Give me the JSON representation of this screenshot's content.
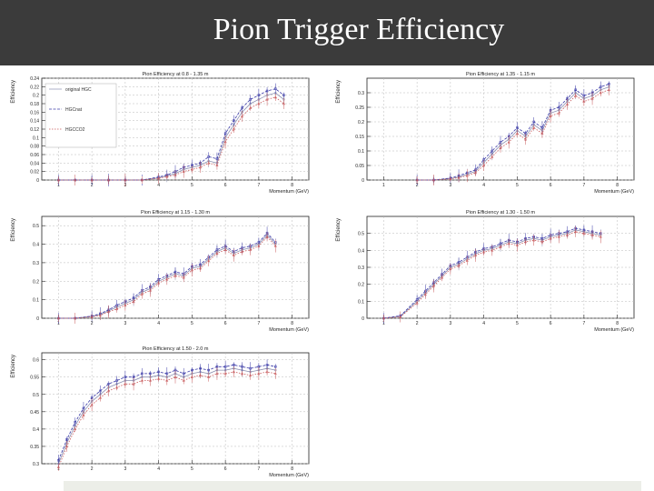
{
  "slide": {
    "title": "Pion Trigger Efficiency",
    "accent": "#3b3b3b"
  },
  "series_style": {
    "colors": [
      "#8a8fb0",
      "#3c3ca8",
      "#c8585a"
    ],
    "markers": [
      "circle",
      "square",
      "triangle"
    ]
  },
  "chart_data": [
    {
      "type": "line",
      "title": "Pion Efficiency at 0.8 - 1.35 m",
      "xlabel": "Momentum (GeV)",
      "ylabel": "Efficiency",
      "xlim": [
        0.5,
        8.5
      ],
      "ylim": [
        0,
        0.24
      ],
      "xticks": [
        1,
        2,
        3,
        4,
        5,
        6,
        7,
        8
      ],
      "yticks": [
        0,
        0.02,
        0.04,
        0.06,
        0.08,
        0.1,
        0.12,
        0.14,
        0.16,
        0.18,
        0.2,
        0.22,
        0.24
      ],
      "grid": true,
      "legend": "top-left",
      "x": [
        1,
        1.5,
        2,
        2.5,
        3,
        3.5,
        4,
        4.25,
        4.5,
        4.75,
        5,
        5.25,
        5.5,
        5.75,
        6,
        6.25,
        6.5,
        6.75,
        7,
        7.25,
        7.5,
        7.75
      ],
      "series": [
        {
          "name": "original HGC",
          "values": [
            0,
            0,
            0,
            0,
            0,
            0,
            0.005,
            0.01,
            0.015,
            0.025,
            0.03,
            0.035,
            0.045,
            0.04,
            0.1,
            0.13,
            0.16,
            0.18,
            0.19,
            0.2,
            0.205,
            0.19
          ]
        },
        {
          "name": "HGCnat",
          "values": [
            0,
            0,
            0,
            0,
            0,
            0,
            0.007,
            0.012,
            0.02,
            0.03,
            0.035,
            0.04,
            0.055,
            0.05,
            0.11,
            0.14,
            0.17,
            0.19,
            0.2,
            0.21,
            0.215,
            0.2
          ]
        },
        {
          "name": "HGCCO2",
          "values": [
            0,
            0,
            0,
            0,
            0,
            0,
            0.004,
            0.008,
            0.012,
            0.02,
            0.025,
            0.03,
            0.04,
            0.035,
            0.09,
            0.12,
            0.15,
            0.17,
            0.18,
            0.19,
            0.195,
            0.18
          ]
        }
      ]
    },
    {
      "type": "line",
      "title": "Pion Efficiency at 1.35 - 1.15 m",
      "xlabel": "Momentum (GeV)",
      "ylabel": "Efficiency",
      "xlim": [
        0.5,
        8.5
      ],
      "ylim": [
        0,
        0.35
      ],
      "xticks": [
        1,
        2,
        3,
        4,
        5,
        6,
        7,
        8
      ],
      "yticks": [
        0,
        0.05,
        0.1,
        0.15,
        0.2,
        0.25,
        0.3
      ],
      "grid": true,
      "legend": "",
      "x": [
        2,
        2.5,
        3,
        3.25,
        3.5,
        3.75,
        4,
        4.25,
        4.5,
        4.75,
        5,
        5.25,
        5.5,
        5.75,
        6,
        6.25,
        6.5,
        6.75,
        7,
        7.25,
        7.5,
        7.75
      ],
      "series": [
        {
          "name": "",
          "values": [
            0,
            0,
            0.005,
            0.01,
            0.02,
            0.03,
            0.06,
            0.09,
            0.12,
            0.14,
            0.17,
            0.15,
            0.19,
            0.17,
            0.23,
            0.24,
            0.27,
            0.3,
            0.28,
            0.29,
            0.31,
            0.32
          ]
        },
        {
          "name": "",
          "values": [
            0,
            0,
            0.007,
            0.015,
            0.025,
            0.035,
            0.07,
            0.1,
            0.13,
            0.15,
            0.18,
            0.16,
            0.2,
            0.18,
            0.24,
            0.25,
            0.28,
            0.31,
            0.29,
            0.3,
            0.32,
            0.33
          ]
        },
        {
          "name": "",
          "values": [
            0,
            0,
            0.004,
            0.008,
            0.015,
            0.025,
            0.05,
            0.08,
            0.11,
            0.13,
            0.16,
            0.14,
            0.18,
            0.16,
            0.22,
            0.23,
            0.26,
            0.29,
            0.27,
            0.28,
            0.3,
            0.31
          ]
        }
      ]
    },
    {
      "type": "line",
      "title": "Pion Efficiency at 1.15 - 1.30 m",
      "xlabel": "Momentum (GeV)",
      "ylabel": "Efficiency",
      "xlim": [
        0.5,
        8.5
      ],
      "ylim": [
        0,
        0.55
      ],
      "xticks": [
        1,
        2,
        3,
        4,
        5,
        6,
        7,
        8
      ],
      "yticks": [
        0,
        0.1,
        0.2,
        0.3,
        0.4,
        0.5
      ],
      "grid": true,
      "legend": "",
      "x": [
        1,
        1.5,
        2,
        2.25,
        2.5,
        2.75,
        3,
        3.25,
        3.5,
        3.75,
        4,
        4.25,
        4.5,
        4.75,
        5,
        5.25,
        5.5,
        5.75,
        6,
        6.25,
        6.5,
        6.75,
        7,
        7.25,
        7.5
      ],
      "series": [
        {
          "name": "",
          "values": [
            0,
            0,
            0.01,
            0.02,
            0.04,
            0.06,
            0.08,
            0.1,
            0.14,
            0.16,
            0.2,
            0.22,
            0.24,
            0.23,
            0.27,
            0.28,
            0.32,
            0.36,
            0.38,
            0.35,
            0.37,
            0.38,
            0.4,
            0.45,
            0.4
          ]
        },
        {
          "name": "",
          "values": [
            0,
            0,
            0.012,
            0.025,
            0.045,
            0.07,
            0.09,
            0.11,
            0.15,
            0.17,
            0.21,
            0.23,
            0.25,
            0.24,
            0.28,
            0.29,
            0.33,
            0.37,
            0.39,
            0.36,
            0.38,
            0.39,
            0.41,
            0.46,
            0.41
          ]
        },
        {
          "name": "",
          "values": [
            0,
            0,
            0.008,
            0.015,
            0.035,
            0.05,
            0.07,
            0.09,
            0.13,
            0.15,
            0.19,
            0.21,
            0.23,
            0.22,
            0.26,
            0.27,
            0.31,
            0.35,
            0.37,
            0.34,
            0.36,
            0.37,
            0.39,
            0.44,
            0.39
          ]
        }
      ]
    },
    {
      "type": "line",
      "title": "Pion Efficiency at 1.30 - 1.50 m",
      "xlabel": "Momentum (GeV)",
      "ylabel": "Efficiency",
      "xlim": [
        0.5,
        8.5
      ],
      "ylim": [
        0,
        0.6
      ],
      "xticks": [
        1,
        2,
        3,
        4,
        5,
        6,
        7,
        8
      ],
      "yticks": [
        0,
        0.1,
        0.2,
        0.3,
        0.4,
        0.5
      ],
      "grid": true,
      "legend": "",
      "x": [
        1,
        1.5,
        2,
        2.25,
        2.5,
        2.75,
        3,
        3.25,
        3.5,
        3.75,
        4,
        4.25,
        4.5,
        4.75,
        5,
        5.25,
        5.5,
        5.75,
        6,
        6.25,
        6.5,
        6.75,
        7,
        7.25,
        7.5
      ],
      "series": [
        {
          "name": "",
          "values": [
            0,
            0.01,
            0.1,
            0.15,
            0.2,
            0.25,
            0.3,
            0.32,
            0.35,
            0.38,
            0.4,
            0.41,
            0.43,
            0.45,
            0.44,
            0.46,
            0.47,
            0.46,
            0.48,
            0.49,
            0.5,
            0.52,
            0.51,
            0.5,
            0.49
          ]
        },
        {
          "name": "",
          "values": [
            0,
            0.015,
            0.11,
            0.16,
            0.21,
            0.26,
            0.31,
            0.33,
            0.36,
            0.39,
            0.41,
            0.42,
            0.44,
            0.46,
            0.45,
            0.47,
            0.48,
            0.47,
            0.49,
            0.5,
            0.51,
            0.53,
            0.52,
            0.51,
            0.5
          ]
        },
        {
          "name": "",
          "values": [
            0,
            0.008,
            0.09,
            0.14,
            0.19,
            0.24,
            0.29,
            0.31,
            0.34,
            0.37,
            0.39,
            0.4,
            0.42,
            0.44,
            0.43,
            0.45,
            0.46,
            0.45,
            0.47,
            0.48,
            0.49,
            0.51,
            0.5,
            0.49,
            0.48
          ]
        }
      ]
    },
    {
      "type": "line",
      "title": "Pion Efficiency at 1.50 - 2.0 m",
      "xlabel": "Momentum (GeV)",
      "ylabel": "Efficiency",
      "xlim": [
        0.5,
        8.5
      ],
      "ylim": [
        0.3,
        0.62
      ],
      "xticks": [
        1,
        2,
        3,
        4,
        5,
        6,
        7,
        8
      ],
      "yticks": [
        0.3,
        0.35,
        0.4,
        0.45,
        0.5,
        0.55,
        0.6
      ],
      "grid": true,
      "legend": "",
      "x": [
        1,
        1.25,
        1.5,
        1.75,
        2,
        2.25,
        2.5,
        2.75,
        3,
        3.25,
        3.5,
        3.75,
        4,
        4.25,
        4.5,
        4.75,
        5,
        5.25,
        5.5,
        5.75,
        6,
        6.25,
        6.5,
        6.75,
        7,
        7.25,
        7.5
      ],
      "series": [
        {
          "name": "",
          "values": [
            0.3,
            0.36,
            0.41,
            0.45,
            0.48,
            0.5,
            0.52,
            0.53,
            0.54,
            0.54,
            0.55,
            0.55,
            0.555,
            0.55,
            0.56,
            0.55,
            0.56,
            0.565,
            0.56,
            0.57,
            0.57,
            0.575,
            0.57,
            0.565,
            0.57,
            0.575,
            0.57
          ]
        },
        {
          "name": "",
          "values": [
            0.31,
            0.37,
            0.42,
            0.46,
            0.49,
            0.51,
            0.53,
            0.54,
            0.55,
            0.55,
            0.56,
            0.56,
            0.565,
            0.56,
            0.57,
            0.56,
            0.57,
            0.575,
            0.57,
            0.58,
            0.58,
            0.585,
            0.58,
            0.575,
            0.58,
            0.585,
            0.58
          ]
        },
        {
          "name": "",
          "values": [
            0.29,
            0.35,
            0.4,
            0.44,
            0.47,
            0.49,
            0.51,
            0.52,
            0.53,
            0.53,
            0.54,
            0.54,
            0.545,
            0.54,
            0.55,
            0.54,
            0.55,
            0.555,
            0.55,
            0.56,
            0.56,
            0.565,
            0.56,
            0.555,
            0.56,
            0.565,
            0.56
          ]
        }
      ]
    }
  ]
}
